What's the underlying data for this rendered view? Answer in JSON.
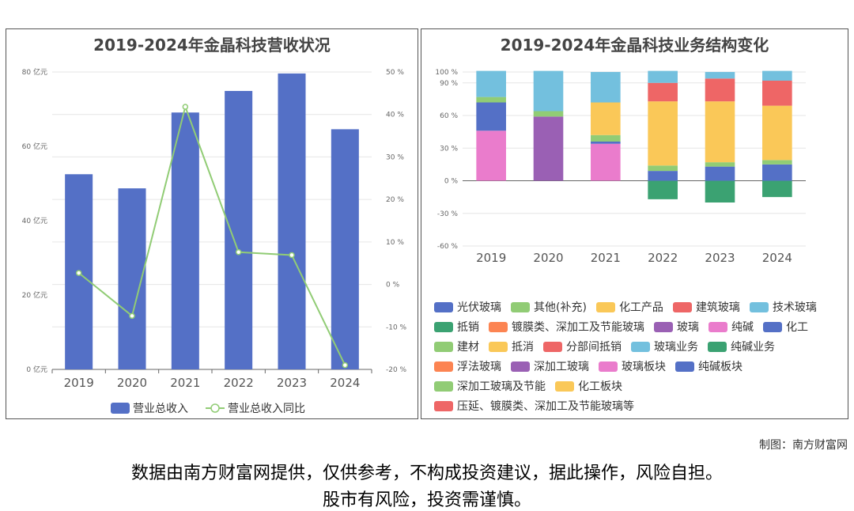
{
  "credit": "制图：南方财富网",
  "disclaimer": {
    "line1": "数据由南方财富网提供，仅供参考，不构成投资建议，据此操作，风险自担。",
    "line2": "股市有风险，投资需谨慎。"
  },
  "colors": {
    "bar": "#5470c6",
    "line": "#91cc75"
  },
  "chart_data": [
    {
      "type": "bar",
      "title": "2019-2024年金晶科技营收状况",
      "categories": [
        "2019",
        "2020",
        "2021",
        "2022",
        "2023",
        "2024"
      ],
      "series": [
        {
          "name": "营业总收入",
          "axis": "left",
          "kind": "bar",
          "values": [
            52.5,
            48.7,
            69.1,
            74.9,
            79.6,
            64.6
          ]
        },
        {
          "name": "营业总收入同比",
          "axis": "right",
          "kind": "line",
          "values": [
            2.7,
            -7.4,
            41.8,
            7.6,
            6.9,
            -19.0
          ]
        }
      ],
      "yleft": {
        "min": 0,
        "max": 80,
        "ticks": [
          "0 亿元",
          "20 亿元",
          "40 亿元",
          "60 亿元",
          "80 亿元"
        ]
      },
      "yright": {
        "min": -20,
        "max": 50,
        "ticks": [
          "-20 %",
          "-10 %",
          "0 %",
          "10 %",
          "20 %",
          "30 %",
          "40 %",
          "50 %"
        ]
      },
      "legend": "bottom"
    },
    {
      "type": "bar",
      "stacked": true,
      "title": "2019-2024年金晶科技业务结构变化",
      "categories": [
        "2019",
        "2020",
        "2021",
        "2022",
        "2023",
        "2024"
      ],
      "yaxis": {
        "min": -60,
        "max": 100,
        "ticks": [
          "-60 %",
          "-30 %",
          "0 %",
          "30 %",
          "60 %",
          "90 %",
          "100 %"
        ]
      },
      "series": [
        {
          "name": "光伏玻璃",
          "color": "#5470c6",
          "values": [
            0,
            0,
            0,
            0,
            0,
            0
          ]
        },
        {
          "name": "其他(补充)",
          "color": "#91cc75",
          "values": [
            0,
            0,
            0,
            0,
            0,
            0
          ]
        },
        {
          "name": "化工产品",
          "color": "#fac858",
          "values": [
            0,
            0,
            0,
            0,
            0,
            0
          ]
        },
        {
          "name": "建筑玻璃",
          "color": "#ee6666",
          "values": [
            0,
            0,
            0,
            0,
            0,
            0
          ]
        },
        {
          "name": "技术玻璃",
          "color": "#73c0de",
          "values": [
            0,
            0,
            0,
            0,
            0,
            0
          ]
        },
        {
          "name": "抵销",
          "color": "#3ba272",
          "values": [
            0,
            0,
            0,
            -17,
            -20,
            -15
          ]
        },
        {
          "name": "镀膜类、深加工及节能玻璃",
          "color": "#fc8452",
          "values": [
            0,
            0,
            0,
            0,
            0,
            0
          ]
        },
        {
          "name": "玻璃",
          "color": "#9a60b4",
          "values": [
            0,
            59,
            0,
            0,
            0,
            0
          ]
        },
        {
          "name": "纯碱",
          "color": "#ea7ccc",
          "values": [
            46,
            0,
            34,
            0,
            0,
            0
          ]
        },
        {
          "name": "化工",
          "color": "#5470c6",
          "values": [
            26,
            0,
            2,
            9,
            13,
            15
          ]
        },
        {
          "name": "建材",
          "color": "#91cc75",
          "values": [
            5,
            5,
            6,
            5,
            4,
            4
          ]
        },
        {
          "name": "抵消",
          "color": "#fac858",
          "values": [
            0,
            0,
            30,
            59,
            56,
            50
          ]
        },
        {
          "name": "分部间抵销",
          "color": "#ee6666",
          "values": [
            0,
            0,
            0,
            17,
            21,
            23
          ]
        },
        {
          "name": "玻璃业务",
          "color": "#73c0de",
          "values": [
            24,
            37,
            28,
            11,
            6,
            9
          ]
        },
        {
          "name": "纯碱业务",
          "color": "#3ba272",
          "values": [
            0,
            0,
            0,
            0,
            0,
            0
          ]
        },
        {
          "name": "浮法玻璃",
          "color": "#fc8452",
          "values": [
            0,
            0,
            0,
            0,
            0,
            0
          ]
        },
        {
          "name": "深加工玻璃",
          "color": "#9a60b4",
          "values": [
            0,
            0,
            0,
            0,
            0,
            0
          ]
        },
        {
          "name": "玻璃板块",
          "color": "#ea7ccc",
          "values": [
            0,
            0,
            0,
            0,
            0,
            0
          ]
        },
        {
          "name": "纯碱板块",
          "color": "#5470c6",
          "values": [
            0,
            0,
            0,
            0,
            0,
            0
          ]
        },
        {
          "name": "深加工玻璃及节能",
          "color": "#91cc75",
          "values": [
            0,
            0,
            0,
            0,
            0,
            0
          ]
        },
        {
          "name": "化工板块",
          "color": "#fac858",
          "values": [
            0,
            0,
            0,
            0,
            0,
            0
          ]
        },
        {
          "name": "压延、镀膜类、深加工及节能玻璃等",
          "color": "#ee6666",
          "values": [
            0,
            0,
            0,
            0,
            0,
            0
          ]
        }
      ],
      "stack_order": [
        "建材",
        "玻璃业务",
        "纯碱",
        "玻璃",
        "化工",
        "抵消",
        "分部间抵销"
      ],
      "stack_order_note": "",
      "legend": "bottom"
    }
  ]
}
